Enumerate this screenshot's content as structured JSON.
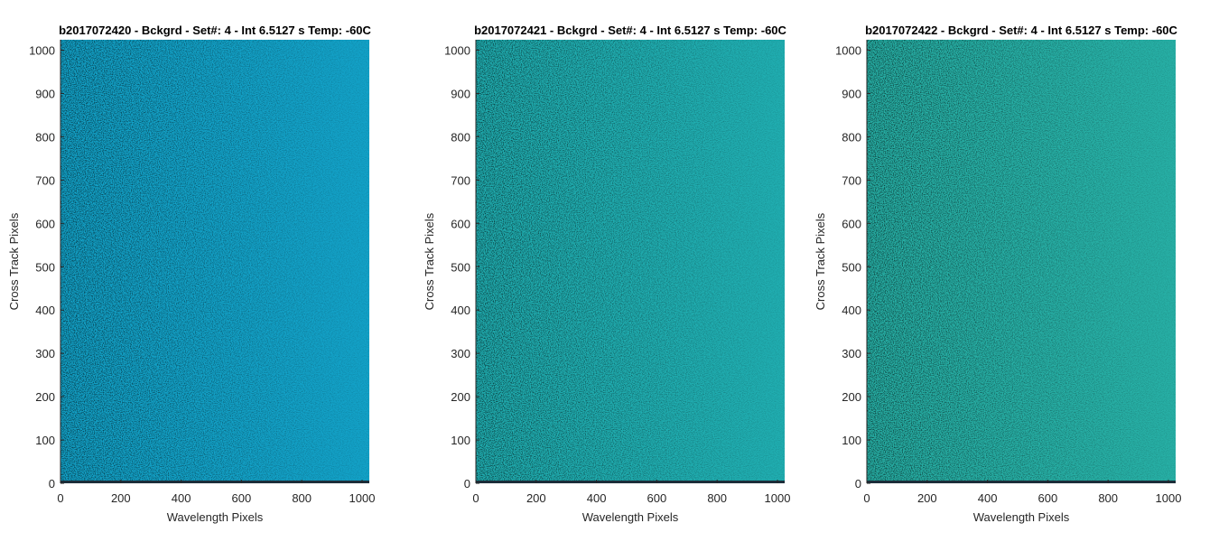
{
  "chart_data": [
    {
      "type": "heatmap",
      "title": "b2017072420 - Bckgrd - Set#: 4 - Int 6.5127 s Temp: -60C",
      "xlabel": "Wavelength Pixels",
      "ylabel": "Cross Track Pixels",
      "xlim": [
        0,
        1024
      ],
      "ylim": [
        0,
        1024
      ],
      "xticks": [
        0,
        200,
        400,
        600,
        800,
        1000
      ],
      "yticks": [
        0,
        100,
        200,
        300,
        400,
        500,
        600,
        700,
        800,
        900,
        1000
      ],
      "colors": {
        "base": "#13a2c8",
        "noise": "#27b2a6",
        "dark_row": "#1c2e3a"
      }
    },
    {
      "type": "heatmap",
      "title": "b2017072421 - Bckgrd - Set#: 4 - Int 6.5127 s Temp: -60C",
      "xlabel": "Wavelength Pixels",
      "ylabel": "Cross Track Pixels",
      "xlim": [
        0,
        1024
      ],
      "ylim": [
        0,
        1024
      ],
      "xticks": [
        0,
        200,
        400,
        600,
        800,
        1000
      ],
      "yticks": [
        0,
        100,
        200,
        300,
        400,
        500,
        600,
        700,
        800,
        900,
        1000
      ],
      "colors": {
        "base": "#20aeb1",
        "noise": "#5cc090",
        "dark_row": "#1c2e3a"
      }
    },
    {
      "type": "heatmap",
      "title": "b2017072422 - Bckgrd - Set#: 4 - Int 6.5127 s Temp: -60C",
      "xlabel": "Wavelength Pixels",
      "ylabel": "Cross Track Pixels",
      "xlim": [
        0,
        1024
      ],
      "ylim": [
        0,
        1024
      ],
      "xticks": [
        0,
        200,
        400,
        600,
        800,
        1000
      ],
      "yticks": [
        0,
        100,
        200,
        300,
        400,
        500,
        600,
        700,
        800,
        900,
        1000
      ],
      "colors": {
        "base": "#27b0a6",
        "noise": "#78c484",
        "dark_row": "#1c2e3a"
      }
    }
  ]
}
